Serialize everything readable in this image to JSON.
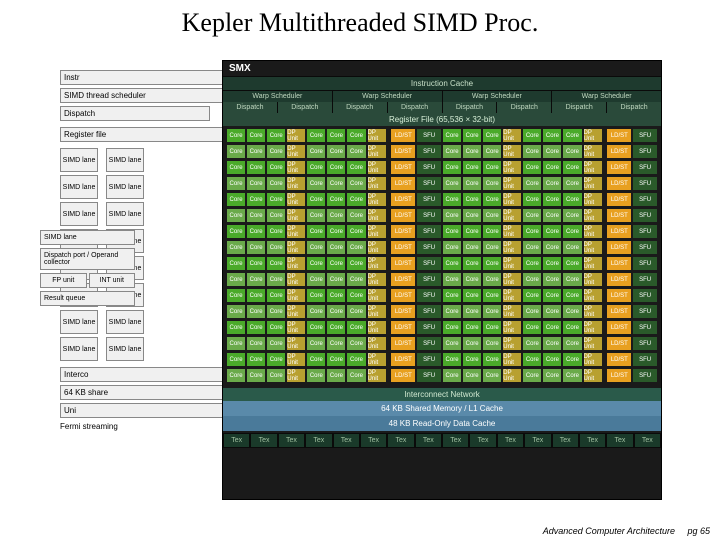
{
  "title": "Kepler Multithreaded SIMD Proc.",
  "footer": {
    "left": "Advanced Computer Architecture",
    "right": "pg 65"
  },
  "left": {
    "instr": "Instr",
    "sched": "SIMD thread scheduler",
    "dispatch": "Dispatch",
    "regfile": "Register file",
    "lane": "SIMD lane",
    "intercon": "Interco",
    "shared": "64 KB share",
    "uniform": "Uni",
    "caption": "Fermi streaming",
    "detail": {
      "title": "SIMD lane",
      "dispatch": "Dispatch port / Operand collector",
      "fp": "FP unit",
      "int": "INT unit",
      "result": "Result queue"
    }
  },
  "smx": {
    "title": "SMX",
    "instr_cache": "Instruction Cache",
    "warp_label": "Warp Scheduler",
    "dispatch_label": "Dispatch",
    "regfile": "Register File (65,536 × 32-bit)",
    "interconnect": "Interconnect Network",
    "l1": "64 KB Shared Memory / L1 Cache",
    "readonly": "48 KB Read-Only Data Cache",
    "tex": "Tex",
    "cells": {
      "core": "Core",
      "dp": "DP Unit",
      "ldst": "LD/ST",
      "sfu": "SFU"
    },
    "colors": {
      "core": "#4aaa2a",
      "dp_olive": "#b8a030",
      "ldst_orange": "#e8a020",
      "sfu_dgreen": "#2a5a2a",
      "core_light": "#6aaa4a",
      "bg": "#1a1a1a",
      "bar_dark": "#1e3a2e",
      "bar_light": "#2a4a3a",
      "bar_blue": "#5a8aaa"
    },
    "row_pattern": [
      "core",
      "core",
      "core",
      "dp",
      "core",
      "core",
      "core",
      "dp",
      "gap",
      "ldst",
      "sfu",
      "core",
      "core",
      "core",
      "dp",
      "core",
      "core",
      "core",
      "dp",
      "gap",
      "ldst",
      "sfu"
    ],
    "num_rows": 16,
    "num_tex": 16,
    "num_warps": 4,
    "num_dispatch": 8
  }
}
